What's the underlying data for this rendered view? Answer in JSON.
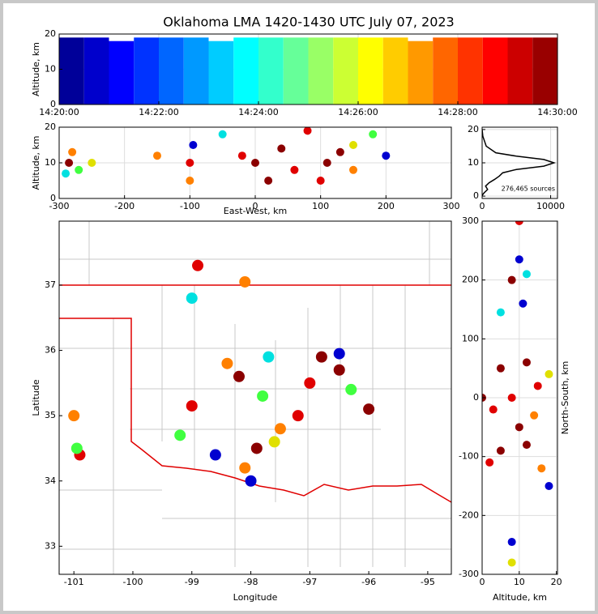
{
  "chart_data": [
    {
      "type": "bar",
      "title": "Oklahoma LMA 1420-1430 UTC July 07, 2023",
      "ylabel": "Altitude, km",
      "colormap": "jet",
      "x": [
        "14:20:15",
        "14:20:45",
        "14:21:15",
        "14:21:45",
        "14:22:15",
        "14:22:45",
        "14:23:15",
        "14:23:45",
        "14:24:15",
        "14:24:45",
        "14:25:15",
        "14:25:45",
        "14:26:15",
        "14:26:45",
        "14:27:15",
        "14:27:45",
        "14:28:15",
        "14:28:45",
        "14:29:15",
        "14:29:45"
      ],
      "values": [
        19,
        19,
        18,
        19,
        19,
        19,
        18,
        19,
        19,
        19,
        19,
        19,
        19,
        19,
        18,
        19,
        19,
        19,
        19,
        19
      ],
      "xlim": [
        "14:20:00",
        "14:30:00"
      ],
      "xticks": [
        "14:20:00",
        "14:22:00",
        "14:24:00",
        "14:26:00",
        "14:28:00",
        "14:30:00"
      ],
      "ylim": [
        0,
        20
      ],
      "yticks": [
        0,
        10,
        20
      ],
      "grid": true
    },
    {
      "type": "scatter",
      "xlabel": "East-West, km",
      "ylabel": "Altitude, km",
      "x": [
        -285,
        -280,
        -290,
        -270,
        -250,
        -150,
        -100,
        -95,
        -100,
        -50,
        -20,
        0,
        20,
        40,
        60,
        80,
        100,
        110,
        130,
        150,
        150,
        180,
        200
      ],
      "y": [
        10,
        13,
        7,
        8,
        10,
        12,
        10,
        15,
        5,
        18,
        12,
        10,
        5,
        14,
        8,
        19,
        5,
        10,
        13,
        8,
        15,
        18,
        12
      ],
      "colors": [
        "#8b0000",
        "#ff8000",
        "#00e0e0",
        "#40ff40",
        "#e0e000",
        "#ff8000",
        "#e00000",
        "#0000d0",
        "#ff8000",
        "#00e0e0",
        "#e00000",
        "#8b0000",
        "#8b0000",
        "#8b0000",
        "#e00000",
        "#e00000",
        "#e00000",
        "#8b0000",
        "#8b0000",
        "#ff8000",
        "#e0e000",
        "#40ff40",
        "#0000d0"
      ],
      "xlim": [
        -300,
        300
      ],
      "xticks": [
        -300,
        -200,
        -100,
        0,
        100,
        200,
        300
      ],
      "ylim": [
        0,
        20
      ],
      "yticks": [
        0,
        10,
        20
      ],
      "grid": true
    },
    {
      "type": "line",
      "annotation": "276,465 sources",
      "color": "#000000",
      "x": [
        0,
        100,
        600,
        2000,
        5000,
        9000,
        10500,
        9000,
        5000,
        3000,
        2500,
        1800,
        1000,
        500,
        800,
        300,
        100,
        0
      ],
      "y": [
        20,
        18,
        15,
        13,
        12,
        11,
        10,
        9,
        8,
        7,
        6,
        5,
        4,
        3,
        2,
        1,
        0.5,
        0
      ],
      "xlim": [
        0,
        11000
      ],
      "xticks": [
        0,
        10000
      ],
      "ylim": [
        -0.7,
        20.7
      ],
      "yticks": [
        0,
        10,
        20
      ],
      "grid": true
    },
    {
      "type": "scatter",
      "xlabel": "Longitude",
      "ylabel": "Latitude",
      "x": [
        -96.5,
        -97.9,
        -97.2,
        -97.8,
        -98.2,
        -98.4,
        -98.9,
        -98.1,
        -99.0,
        -101.0,
        -100.9,
        -100.95,
        -96.3,
        -97.5,
        -96.8,
        -97.0,
        -98.1,
        -97.6,
        -98.0,
        -96.0,
        -99.0,
        -99.2,
        -96.5,
        -97.7,
        -98.6
      ],
      "y": [
        35.7,
        34.5,
        35.0,
        35.3,
        35.6,
        35.8,
        37.3,
        37.05,
        36.8,
        35.0,
        34.4,
        34.5,
        35.4,
        34.8,
        35.9,
        35.5,
        34.2,
        34.6,
        34.0,
        35.1,
        35.15,
        34.7,
        35.95,
        35.9,
        34.4
      ],
      "colors": [
        "#8b0000",
        "#8b0000",
        "#e00000",
        "#40ff40",
        "#8b0000",
        "#ff8000",
        "#e00000",
        "#ff8000",
        "#00e0e0",
        "#ff8000",
        "#e00000",
        "#40ff40",
        "#40ff40",
        "#ff8000",
        "#8b0000",
        "#e00000",
        "#ff8000",
        "#e0e000",
        "#0000d0",
        "#8b0000",
        "#e00000",
        "#40ff40",
        "#0000d0",
        "#00e0e0",
        "#0000d0"
      ],
      "xlim": [
        -101.25,
        -94.6
      ],
      "xticks": [
        -101,
        -100,
        -99,
        -98,
        -97,
        -96,
        -95
      ],
      "ylim": [
        32.57,
        37.98
      ],
      "yticks": [
        33,
        34,
        35,
        36,
        37
      ],
      "grid": false
    },
    {
      "type": "scatter",
      "xlabel": "Altitude, km",
      "ylabel": "North-South, km",
      "x": [
        5,
        12,
        8,
        5,
        12,
        10,
        3,
        15,
        8,
        12,
        11,
        10,
        5,
        18,
        16,
        2,
        18,
        10,
        8,
        8,
        0,
        14
      ],
      "y": [
        50,
        60,
        0,
        -90,
        -80,
        -50,
        -20,
        20,
        200,
        210,
        160,
        235,
        145,
        40,
        -120,
        -110,
        -150,
        300,
        -245,
        -280,
        0,
        -30
      ],
      "colors": [
        "#8b0000",
        "#8b0000",
        "#e00000",
        "#8b0000",
        "#8b0000",
        "#8b0000",
        "#e00000",
        "#e00000",
        "#8b0000",
        "#00e0e0",
        "#0000d0",
        "#0000d0",
        "#00e0e0",
        "#e0e000",
        "#ff8000",
        "#e00000",
        "#0000d0",
        "#e00000",
        "#0000d0",
        "#e0e000",
        "#8b0000",
        "#ff8000"
      ],
      "xlim": [
        0,
        20.3
      ],
      "xticks": [
        0,
        10,
        20
      ],
      "ylim": [
        -300,
        300
      ],
      "yticks": [
        -300,
        -200,
        -100,
        0,
        100,
        200,
        300
      ],
      "grid": true
    }
  ]
}
